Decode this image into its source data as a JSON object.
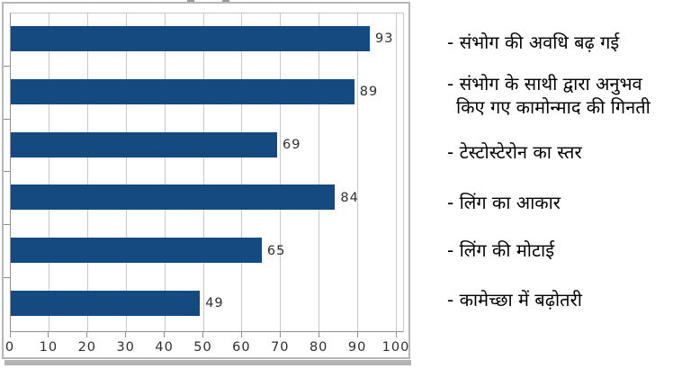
{
  "chart_data": {
    "type": "bar",
    "orientation": "horizontal",
    "title": "",
    "xlabel": "",
    "ylabel": "",
    "xlim": [
      0,
      100
    ],
    "x_ticks": [
      0,
      10,
      20,
      30,
      40,
      50,
      60,
      70,
      80,
      90,
      100
    ],
    "grid": true,
    "legend_position": "right",
    "bar_color": "#154a81",
    "categories": [
      "संभोग की अवधि बढ़ गई",
      "संभोग के साथी द्वारा अनुभव किए गए कामोन्माद की गिनती",
      "टेस्टोस्टेरोन का स्तर",
      "लिंग का आकार",
      "लिंग की मोटाई",
      "कामेच्छा में बढ़ोतरी"
    ],
    "values": [
      93,
      89,
      69,
      84,
      65,
      49
    ],
    "data_labels": [
      "93",
      "89",
      "69",
      "84",
      "65",
      "49"
    ]
  },
  "labels_panel": {
    "items": [
      {
        "lines": [
          "- संभोग की अवधि बढ़ गई"
        ]
      },
      {
        "lines": [
          "- संभोग के साथी द्वारा अनुभव",
          "किए गए कामोन्माद की गिनती"
        ]
      },
      {
        "lines": [
          "- टेस्टोस्टेरोन का स्तर"
        ]
      },
      {
        "lines": [
          "- लिंग का आकार"
        ]
      },
      {
        "lines": [
          "- लिंग की मोटाई"
        ]
      },
      {
        "lines": [
          "- कामेच्छा में बढ़ोतरी"
        ]
      }
    ]
  },
  "colors": {
    "bar": "#154a81",
    "gridline": "#c9c9c9",
    "axis": "#8f8f8f",
    "frame_border": "#b7b7b7",
    "tick_text": "#2e2e2e",
    "label_text": "#000000"
  }
}
